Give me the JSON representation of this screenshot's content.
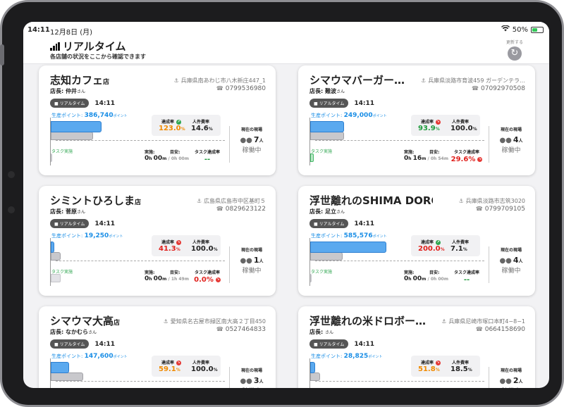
{
  "status_bar": {
    "time": "14:11",
    "date": "12月8日 (月)",
    "battery": "50%",
    "battery_fraction": 0.5
  },
  "header": {
    "title": "リアルタイム",
    "subtitle": "各店舗の状況をここから確認できます",
    "refresh_label": "更新する",
    "refresh_icon": "refresh-icon"
  },
  "labels": {
    "store_suffix": "店",
    "manager_prefix": "店長: ",
    "san": "さん",
    "realtime_badge": "リアルタイム",
    "productivity": "生産ポイント: ",
    "points_unit": "ポイント",
    "task_done": "タスク実施",
    "achievement": "達成率",
    "labor_cost": "人件費率",
    "actual": "実施:",
    "target": "目安:",
    "task_rate": "タスク達成率",
    "current_site": "現在の現場",
    "working": "稼働中",
    "people_unit": "人",
    "pct": "%"
  },
  "stores": [
    {
      "name": "志知カフェ",
      "suffix": "店",
      "manager": "仲井",
      "address": "兵庫県南あわじ市八木新庄447_1",
      "phone": "0799536980",
      "rt_time": "14:11",
      "points": "386,740",
      "prod_fraction": 0.3,
      "target_fraction": 0.25,
      "task_fraction": 0.0,
      "task_green": false,
      "achievement": "123.0",
      "achievement_color": "orange",
      "achievement_trend": "up",
      "labor": "14.6",
      "actual_h": "0",
      "actual_m": "00",
      "target_h": "0",
      "target_m": "00",
      "task_rate": "--",
      "task_rate_color": "green",
      "task_rate_trend": "",
      "staff": "7"
    },
    {
      "name": "シマウマバーガー…",
      "suffix": "",
      "manager": "難波",
      "address": "兵庫県淡路市育波459 ガーデンテラ…",
      "phone": "07092970508",
      "rt_time": "14:11",
      "points": "249,000",
      "prod_fraction": 0.2,
      "target_fraction": 0.2,
      "task_fraction": 0.02,
      "task_green": true,
      "achievement": "93.9",
      "achievement_color": "green",
      "achievement_trend": "down",
      "labor": "100.0",
      "actual_h": "0",
      "actual_m": "16",
      "target_h": "0",
      "target_m": "54",
      "task_rate": "29.6",
      "task_rate_color": "red",
      "task_rate_trend": "down",
      "staff": "4"
    },
    {
      "name": "シミントひろしま",
      "suffix": "店",
      "manager": "菅原",
      "address": "広島県広島市中区基町５",
      "phone": "0829623122",
      "rt_time": "14:11",
      "points": "19,250",
      "prod_fraction": 0.02,
      "target_fraction": 0.06,
      "task_fraction": 0.06,
      "task_green": false,
      "achievement": "41.3",
      "achievement_color": "red",
      "achievement_trend": "down",
      "labor": "100.0",
      "actual_h": "0",
      "actual_m": "00",
      "target_h": "1",
      "target_m": "49",
      "task_rate": "0.0",
      "task_rate_color": "red",
      "task_rate_trend": "down",
      "staff": "1"
    },
    {
      "name": "浮世離れのSHIMA DORO…",
      "suffix": "",
      "manager": "足立",
      "address": "兵庫県淡路市志筑3020",
      "phone": "0799709105",
      "rt_time": "14:11",
      "points": "585,576",
      "prod_fraction": 0.45,
      "target_fraction": 0.19,
      "task_fraction": 0.0,
      "task_green": false,
      "achievement": "200.0",
      "achievement_color": "red",
      "achievement_trend": "up",
      "labor": "7.1",
      "actual_h": "0",
      "actual_m": "00",
      "target_h": "0",
      "target_m": "00",
      "task_rate": "--",
      "task_rate_color": "green",
      "task_rate_trend": "",
      "staff": "4"
    },
    {
      "name": "シマウマ大高",
      "suffix": "店",
      "manager": "なかむら",
      "address": "愛知県名古屋市緑区南大高２丁目450",
      "phone": "0527464833",
      "rt_time": "14:11",
      "points": "147,600",
      "prod_fraction": 0.11,
      "target_fraction": 0.19,
      "task_fraction": 0.0,
      "task_green": false,
      "achievement": "59.1",
      "achievement_color": "orange",
      "achievement_trend": "down",
      "labor": "100.0",
      "actual_h": "",
      "actual_m": "",
      "target_h": "",
      "target_m": "",
      "task_rate": "",
      "task_rate_color": "green",
      "task_rate_trend": "",
      "staff": "3"
    },
    {
      "name": "浮世離れの米ドロボー…",
      "suffix": "",
      "manager": "",
      "address": "兵庫県尼崎市塚口本町4−8−1",
      "phone": "0664158690",
      "rt_time": "14:11",
      "points": "28,825",
      "prod_fraction": 0.03,
      "target_fraction": 0.06,
      "task_fraction": 0.0,
      "task_green": false,
      "achievement": "51.8",
      "achievement_color": "orange",
      "achievement_trend": "down",
      "labor": "18.5",
      "actual_h": "",
      "actual_m": "",
      "target_h": "",
      "target_m": "",
      "task_rate": "",
      "task_rate_color": "green",
      "task_rate_trend": "",
      "staff": "2"
    }
  ]
}
